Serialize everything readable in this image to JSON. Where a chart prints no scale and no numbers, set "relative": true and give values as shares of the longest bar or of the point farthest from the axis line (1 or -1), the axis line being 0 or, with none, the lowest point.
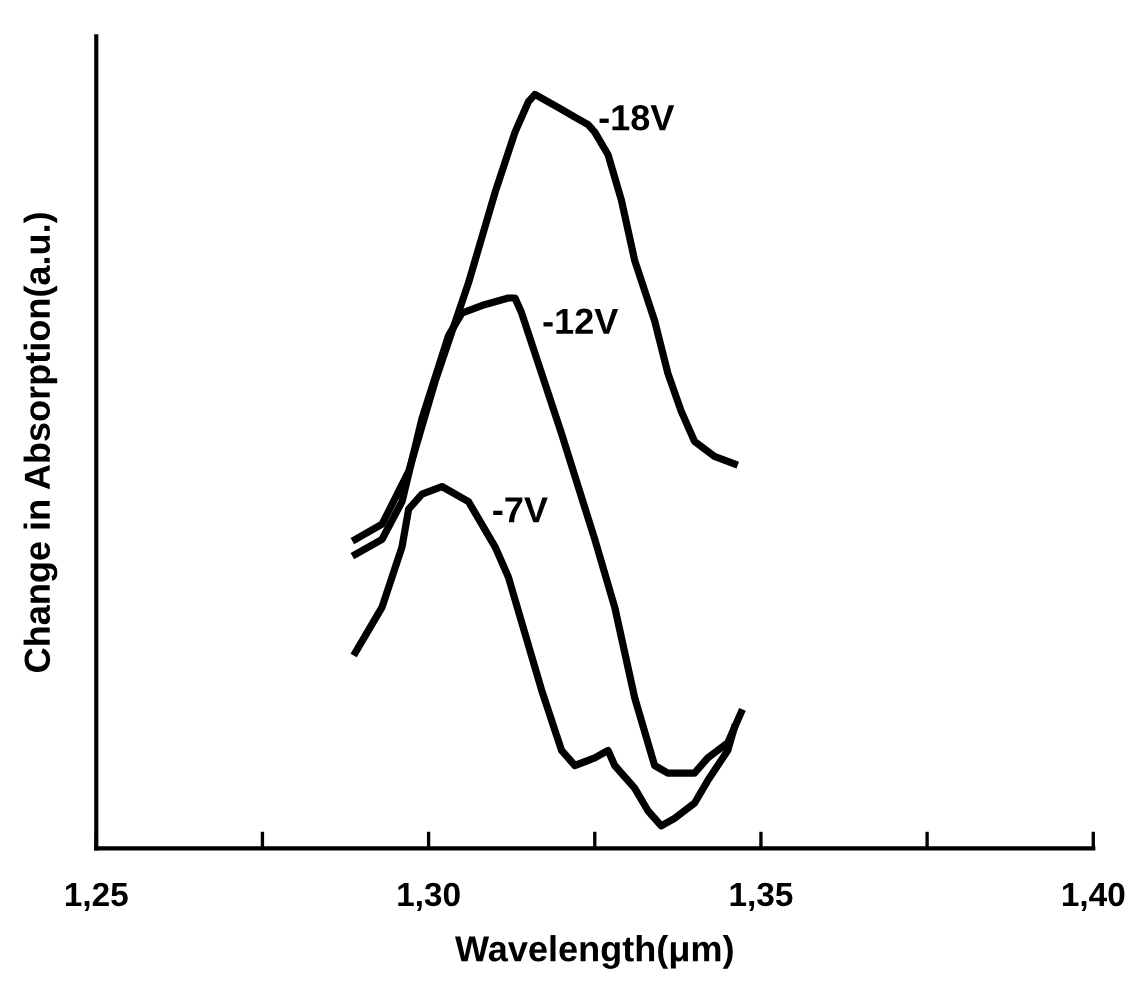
{
  "chart_data": {
    "type": "line",
    "relative": true,
    "xlabel": "Wavelength(μm)",
    "ylabel": "Change in Absorption(a.u.)",
    "xlim": [
      1.25,
      1.4
    ],
    "xticks": [
      {
        "value": 1.25,
        "label": "1,25"
      },
      {
        "value": 1.275,
        "label": null
      },
      {
        "value": 1.3,
        "label": "1,30"
      },
      {
        "value": 1.325,
        "label": null
      },
      {
        "value": 1.35,
        "label": "1,35"
      },
      {
        "value": 1.375,
        "label": null
      },
      {
        "value": 1.4,
        "label": "1,40"
      }
    ],
    "grid": false,
    "legend": false,
    "marker": "none",
    "line_style": "solid",
    "series": [
      {
        "name": "-18V",
        "color": "#000000",
        "x": [
          1.289,
          1.293,
          1.297,
          1.301,
          1.306,
          1.31,
          1.313,
          1.315,
          1.316,
          1.318,
          1.32,
          1.322,
          1.324,
          1.325,
          1.327,
          1.329,
          1.331,
          1.334,
          1.336,
          1.338,
          1.34,
          1.343,
          1.346
        ],
        "values": [
          0.41,
          0.43,
          0.5,
          0.62,
          0.75,
          0.87,
          0.95,
          0.99,
          1.0,
          0.99,
          0.98,
          0.97,
          0.96,
          0.95,
          0.92,
          0.86,
          0.78,
          0.7,
          0.63,
          0.58,
          0.54,
          0.52,
          0.51
        ]
      },
      {
        "name": "-12V",
        "color": "#000000",
        "x": [
          1.289,
          1.293,
          1.296,
          1.299,
          1.303,
          1.305,
          1.308,
          1.312,
          1.313,
          1.314,
          1.317,
          1.32,
          1.325,
          1.328,
          1.331,
          1.334,
          1.336,
          1.34,
          1.342,
          1.345,
          1.347
        ],
        "values": [
          0.39,
          0.41,
          0.46,
          0.57,
          0.68,
          0.71,
          0.72,
          0.73,
          0.73,
          0.71,
          0.63,
          0.55,
          0.41,
          0.32,
          0.2,
          0.11,
          0.1,
          0.1,
          0.12,
          0.14,
          0.18
        ]
      },
      {
        "name": "-7V",
        "color": "#000000",
        "x": [
          1.289,
          1.293,
          1.296,
          1.297,
          1.299,
          1.302,
          1.306,
          1.31,
          1.312,
          1.314,
          1.317,
          1.32,
          1.322,
          1.325,
          1.327,
          1.328,
          1.331,
          1.333,
          1.335,
          1.337,
          1.34,
          1.342,
          1.345,
          1.346
        ],
        "values": [
          0.26,
          0.32,
          0.4,
          0.45,
          0.47,
          0.48,
          0.46,
          0.4,
          0.36,
          0.3,
          0.21,
          0.13,
          0.11,
          0.12,
          0.13,
          0.11,
          0.08,
          0.05,
          0.03,
          0.04,
          0.06,
          0.09,
          0.13,
          0.16
        ]
      }
    ]
  }
}
